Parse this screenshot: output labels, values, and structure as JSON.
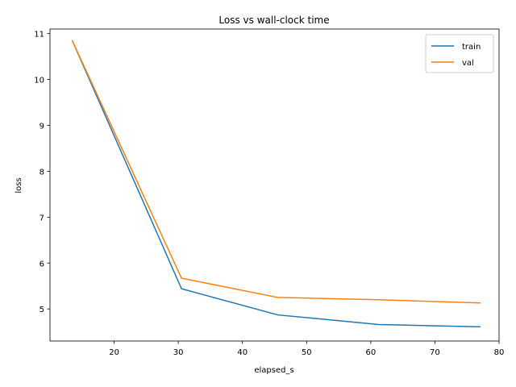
{
  "chart_data": {
    "type": "line",
    "title": "Loss vs wall-clock time",
    "xlabel": "elapsed_s",
    "ylabel": "loss",
    "xlim": [
      10,
      80
    ],
    "ylim": [
      4.3,
      11.1
    ],
    "xticks": [
      20,
      30,
      40,
      50,
      60,
      70,
      80
    ],
    "yticks": [
      5,
      6,
      7,
      8,
      9,
      10,
      11
    ],
    "grid": false,
    "legend_position": "top-right",
    "series": [
      {
        "name": "train",
        "color": "#1f77b4",
        "x": [
          13.5,
          30.5,
          45.5,
          61.2,
          77.0
        ],
        "y": [
          10.84,
          5.44,
          4.87,
          4.66,
          4.61
        ]
      },
      {
        "name": "val",
        "color": "#ff7f0e",
        "x": [
          13.5,
          30.5,
          45.5,
          61.2,
          77.0
        ],
        "y": [
          10.84,
          5.67,
          5.25,
          5.2,
          5.13
        ]
      }
    ]
  }
}
